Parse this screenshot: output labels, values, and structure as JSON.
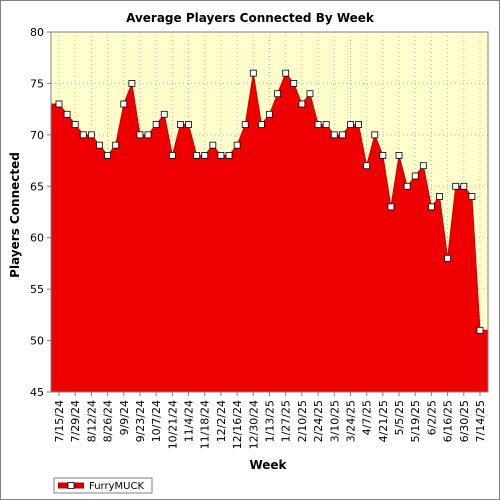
{
  "chart_data": {
    "type": "area",
    "title": "Average Players Connected By Week",
    "xlabel": "Week",
    "ylabel": "Players Connected",
    "ylim": [
      45,
      80
    ],
    "yticks": [
      45,
      50,
      55,
      60,
      65,
      70,
      75,
      80
    ],
    "grid": true,
    "legend_position": "bottom-left",
    "colors": {
      "fill": "#ee0000",
      "line": "#cc0000",
      "plot_background": "#ffffcc",
      "grid": "#bbbbbb",
      "marker_fill": "#ffffff"
    },
    "x_tick_labels": [
      "7/15/24",
      "7/29/24",
      "8/12/24",
      "8/26/24",
      "9/9/24",
      "9/23/24",
      "10/7/24",
      "10/21/24",
      "11/4/24",
      "11/18/24",
      "12/2/24",
      "12/16/24",
      "12/30/24",
      "1/13/25",
      "1/27/25",
      "2/10/25",
      "2/24/25",
      "3/10/25",
      "3/24/25",
      "4/7/25",
      "4/21/25",
      "5/5/25",
      "5/19/25",
      "6/2/25",
      "6/16/25",
      "6/30/25",
      "7/14/25"
    ],
    "series": [
      {
        "name": "FurryMUCK",
        "x": [
          "7/15/24",
          "7/22/24",
          "7/29/24",
          "8/5/24",
          "8/12/24",
          "8/19/24",
          "8/26/24",
          "9/2/24",
          "9/9/24",
          "9/16/24",
          "9/23/24",
          "9/30/24",
          "10/7/24",
          "10/14/24",
          "10/21/24",
          "10/28/24",
          "11/4/24",
          "11/11/24",
          "11/18/24",
          "11/25/24",
          "12/2/24",
          "12/9/24",
          "12/16/24",
          "12/23/24",
          "12/30/24",
          "1/6/25",
          "1/13/25",
          "1/20/25",
          "1/27/25",
          "2/3/25",
          "2/10/25",
          "2/17/25",
          "2/24/25",
          "3/3/25",
          "3/10/25",
          "3/17/25",
          "3/24/25",
          "3/31/25",
          "4/7/25",
          "4/14/25",
          "4/21/25",
          "4/28/25",
          "5/5/25",
          "5/12/25",
          "5/19/25",
          "5/26/25",
          "6/2/25",
          "6/9/25",
          "6/16/25",
          "6/23/25",
          "6/30/25",
          "7/7/25",
          "7/14/25"
        ],
        "values": [
          73,
          72,
          71,
          70,
          70,
          69,
          68,
          69,
          73,
          75,
          70,
          70,
          71,
          72,
          68,
          71,
          71,
          68,
          68,
          69,
          68,
          68,
          69,
          71,
          76,
          71,
          72,
          74,
          76,
          75,
          73,
          74,
          71,
          71,
          70,
          70,
          71,
          71,
          67,
          70,
          68,
          63,
          68,
          65,
          66,
          67,
          63,
          64,
          58,
          65,
          65,
          64,
          51
        ]
      }
    ]
  }
}
